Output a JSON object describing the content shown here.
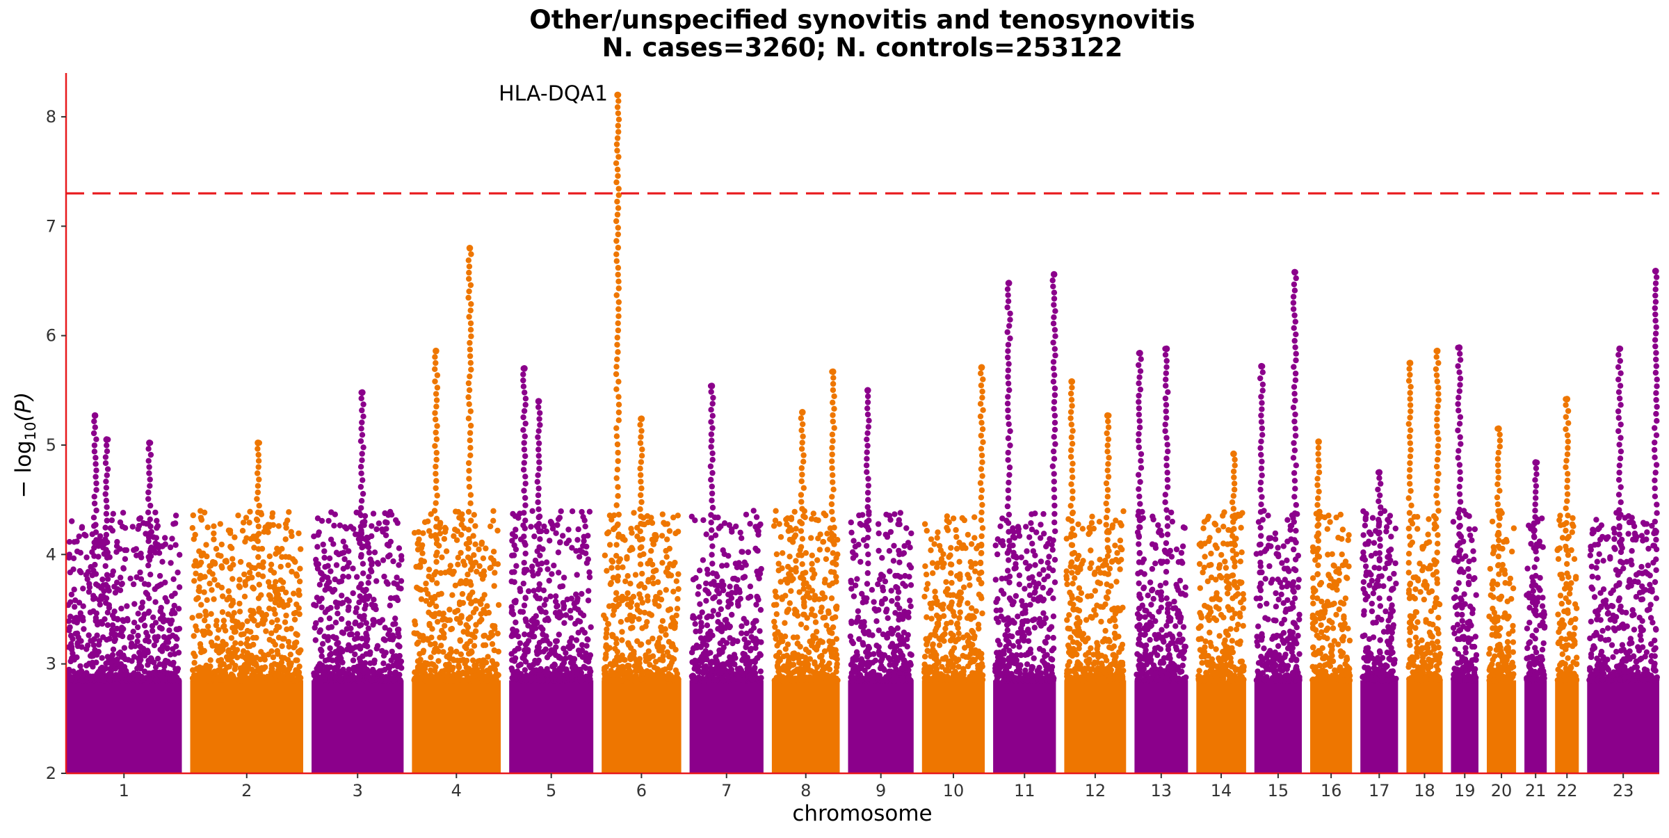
{
  "chart_data": {
    "type": "scatter",
    "subtype": "manhattan",
    "title": "Other/unspecified synovitis and tenosynovitis",
    "subtitle": "N. cases=3260; N. controls=253122",
    "xlabel": "chromosome",
    "ylabel_prefix": "− log",
    "ylabel_subscript": "10",
    "ylabel_suffix": "(P)",
    "ylim": [
      2,
      8.4
    ],
    "yticks": [
      2,
      3,
      4,
      5,
      6,
      7,
      8
    ],
    "grid": false,
    "legend": "none",
    "significance_line": {
      "value": 7.3,
      "color": "#e8191c",
      "style": "dashed"
    },
    "colors": {
      "odd": "#8b008b",
      "even": "#ee7600",
      "axis": "#e8191c"
    },
    "chromosomes": [
      {
        "label": "1",
        "length": 249,
        "peaks": [
          [
            0.25,
            5.27
          ],
          [
            0.35,
            5.05
          ],
          [
            0.72,
            5.02
          ]
        ]
      },
      {
        "label": "2",
        "length": 243,
        "peaks": [
          [
            0.6,
            5.02
          ]
        ]
      },
      {
        "label": "3",
        "length": 198,
        "peaks": [
          [
            0.55,
            5.48
          ]
        ]
      },
      {
        "label": "4",
        "length": 191,
        "peaks": [
          [
            0.27,
            5.86
          ],
          [
            0.65,
            6.8
          ]
        ]
      },
      {
        "label": "5",
        "length": 181,
        "peaks": [
          [
            0.18,
            5.7
          ],
          [
            0.35,
            5.4
          ]
        ]
      },
      {
        "label": "6",
        "length": 171,
        "peaks": [
          [
            0.2,
            8.2
          ],
          [
            0.5,
            5.24
          ]
        ]
      },
      {
        "label": "7",
        "length": 159,
        "peaks": [
          [
            0.3,
            5.54
          ]
        ]
      },
      {
        "label": "8",
        "length": 146,
        "peaks": [
          [
            0.45,
            5.3
          ],
          [
            0.9,
            5.67
          ]
        ]
      },
      {
        "label": "9",
        "length": 141,
        "peaks": [
          [
            0.3,
            5.5
          ]
        ]
      },
      {
        "label": "10",
        "length": 135,
        "peaks": [
          [
            0.95,
            5.71
          ]
        ]
      },
      {
        "label": "11",
        "length": 135,
        "peaks": [
          [
            0.25,
            6.48
          ],
          [
            0.97,
            6.56
          ]
        ]
      },
      {
        "label": "12",
        "length": 133,
        "peaks": [
          [
            0.12,
            5.58
          ],
          [
            0.7,
            5.27
          ]
        ]
      },
      {
        "label": "13",
        "length": 115,
        "peaks": [
          [
            0.1,
            5.84
          ],
          [
            0.6,
            5.88
          ]
        ]
      },
      {
        "label": "14",
        "length": 107,
        "peaks": [
          [
            0.75,
            4.92
          ]
        ]
      },
      {
        "label": "15",
        "length": 102,
        "peaks": [
          [
            0.15,
            5.72
          ],
          [
            0.85,
            6.58
          ]
        ]
      },
      {
        "label": "16",
        "length": 90,
        "peaks": [
          [
            0.2,
            5.03
          ]
        ]
      },
      {
        "label": "17",
        "length": 81,
        "peaks": [
          [
            0.5,
            4.75
          ]
        ]
      },
      {
        "label": "18",
        "length": 78,
        "peaks": [
          [
            0.1,
            5.75
          ],
          [
            0.85,
            5.86
          ]
        ]
      },
      {
        "label": "19",
        "length": 59,
        "peaks": [
          [
            0.3,
            5.89
          ]
        ]
      },
      {
        "label": "20",
        "length": 63,
        "peaks": [
          [
            0.4,
            5.15
          ]
        ]
      },
      {
        "label": "21",
        "length": 48,
        "peaks": [
          [
            0.5,
            4.84
          ]
        ]
      },
      {
        "label": "22",
        "length": 51,
        "peaks": [
          [
            0.5,
            5.42
          ]
        ]
      },
      {
        "label": "23",
        "length": 155,
        "peaks": [
          [
            0.45,
            5.88
          ],
          [
            0.95,
            6.59
          ]
        ]
      }
    ],
    "annotations": [
      {
        "text": "HLA-DQA1",
        "chromosome": "6",
        "value": 8.2
      }
    ]
  }
}
